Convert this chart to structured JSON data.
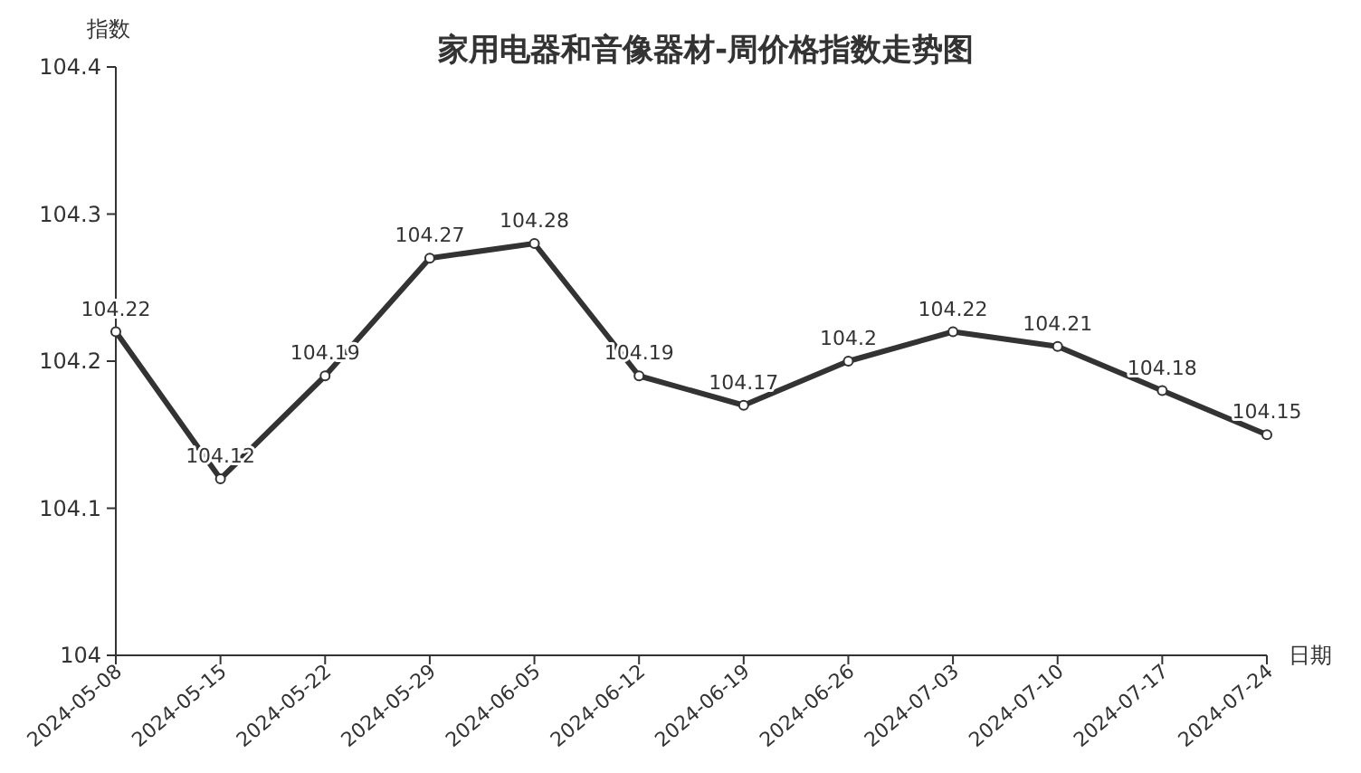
{
  "chart_data": {
    "type": "line",
    "title": "家用电器和音像器材-周价格指数走势图",
    "xlabel": "日期",
    "ylabel": "指数",
    "categories": [
      "2024-05-08",
      "2024-05-15",
      "2024-05-22",
      "2024-05-29",
      "2024-06-05",
      "2024-06-12",
      "2024-06-19",
      "2024-06-26",
      "2024-07-03",
      "2024-07-10",
      "2024-07-17",
      "2024-07-24"
    ],
    "series": [
      {
        "color": "#333333",
        "values": [
          104.22,
          104.12,
          104.19,
          104.27,
          104.28,
          104.19,
          104.17,
          104.2,
          104.22,
          104.21,
          104.18,
          104.15
        ]
      }
    ],
    "ylim": [
      104,
      104.4
    ],
    "yticks": [
      104,
      104.1,
      104.2,
      104.3,
      104.4
    ],
    "data_labels": true,
    "marker": "circle",
    "line_style": "solid"
  }
}
